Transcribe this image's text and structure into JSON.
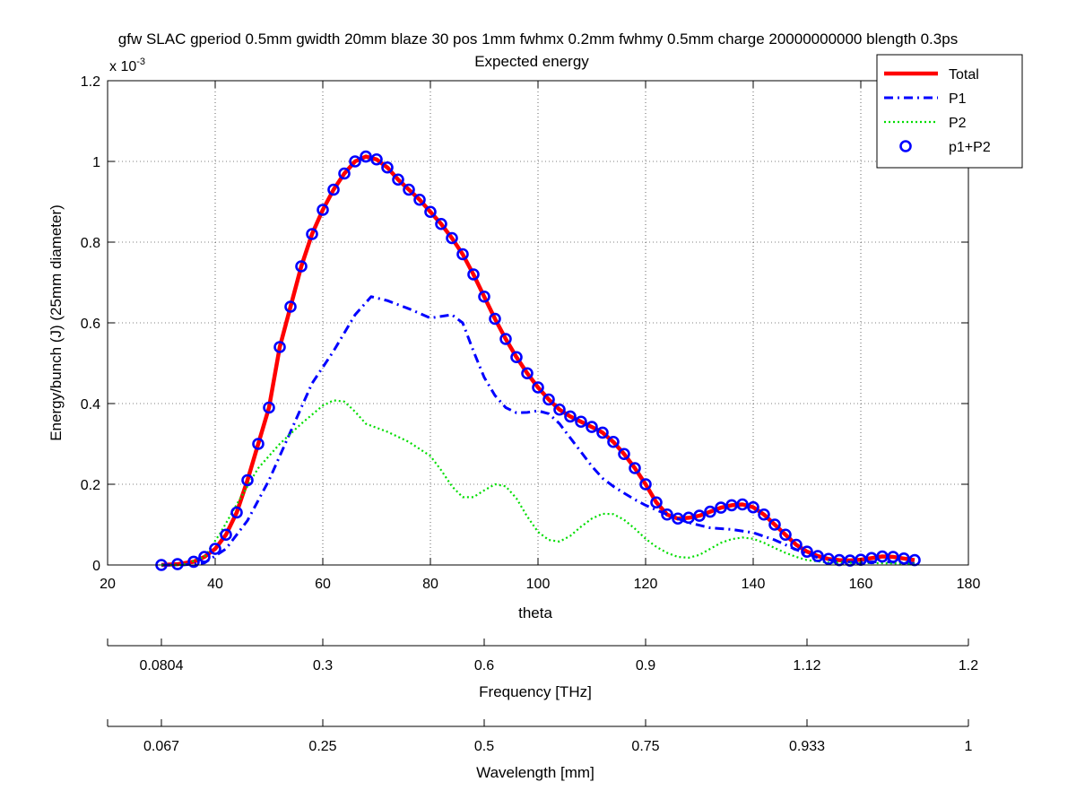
{
  "chart_data": {
    "type": "line",
    "title": "gfw SLAC gperiod 0.5mm gwidth 20mm blaze 30 pos 1mm fwhmx 0.2mm fwhmy 0.5mm charge 20000000000 blength 0.3ps",
    "subtitle": "Expected energy",
    "xlabel": "theta",
    "ylabel": "Energy/bunch (J) (25mm diameter)",
    "y_exponent_label": "x 10",
    "y_exponent_power": "-3",
    "xlim": [
      20,
      180
    ],
    "ylim": [
      0,
      1.2
    ],
    "x_ticks": [
      "20",
      "40",
      "60",
      "80",
      "100",
      "120",
      "140",
      "160",
      "180"
    ],
    "y_ticks": [
      "0",
      "0.2",
      "0.4",
      "0.6",
      "0.8",
      "1",
      "1.2"
    ],
    "grid": true,
    "legend_position": "top-right",
    "secondary_axes": [
      {
        "label": "Frequency [THz]",
        "ticks": [
          {
            "theta": 30,
            "label": "0.0804"
          },
          {
            "theta": 60,
            "label": "0.3"
          },
          {
            "theta": 90,
            "label": "0.6"
          },
          {
            "theta": 120,
            "label": "0.9"
          },
          {
            "theta": 150,
            "label": "1.12"
          },
          {
            "theta": 180,
            "label": "1.2"
          }
        ]
      },
      {
        "label": "Wavelength [mm]",
        "ticks": [
          {
            "theta": 30,
            "label": "0.067"
          },
          {
            "theta": 60,
            "label": "0.25"
          },
          {
            "theta": 90,
            "label": "0.5"
          },
          {
            "theta": 120,
            "label": "0.75"
          },
          {
            "theta": 150,
            "label": "0.933"
          },
          {
            "theta": 180,
            "label": "1"
          }
        ]
      }
    ],
    "series": [
      {
        "name": "Total",
        "color": "#ff0000",
        "style": "solid",
        "points": [
          [
            30,
            0.0
          ],
          [
            33,
            0.002
          ],
          [
            36,
            0.008
          ],
          [
            38,
            0.02
          ],
          [
            40,
            0.04
          ],
          [
            42,
            0.075
          ],
          [
            44,
            0.13
          ],
          [
            46,
            0.21
          ],
          [
            48,
            0.3
          ],
          [
            50,
            0.39
          ],
          [
            52,
            0.54
          ],
          [
            54,
            0.64
          ],
          [
            56,
            0.74
          ],
          [
            58,
            0.82
          ],
          [
            60,
            0.88
          ],
          [
            62,
            0.93
          ],
          [
            64,
            0.97
          ],
          [
            66,
            1.0
          ],
          [
            68,
            1.012
          ],
          [
            70,
            1.005
          ],
          [
            72,
            0.985
          ],
          [
            74,
            0.955
          ],
          [
            76,
            0.93
          ],
          [
            78,
            0.905
          ],
          [
            80,
            0.875
          ],
          [
            82,
            0.845
          ],
          [
            84,
            0.81
          ],
          [
            86,
            0.77
          ],
          [
            88,
            0.72
          ],
          [
            90,
            0.665
          ],
          [
            92,
            0.61
          ],
          [
            94,
            0.56
          ],
          [
            96,
            0.515
          ],
          [
            98,
            0.475
          ],
          [
            100,
            0.44
          ],
          [
            102,
            0.41
          ],
          [
            104,
            0.385
          ],
          [
            106,
            0.368
          ],
          [
            108,
            0.355
          ],
          [
            110,
            0.342
          ],
          [
            112,
            0.328
          ],
          [
            114,
            0.305
          ],
          [
            116,
            0.275
          ],
          [
            118,
            0.24
          ],
          [
            120,
            0.2
          ],
          [
            122,
            0.155
          ],
          [
            124,
            0.125
          ],
          [
            126,
            0.115
          ],
          [
            128,
            0.117
          ],
          [
            130,
            0.122
          ],
          [
            132,
            0.132
          ],
          [
            134,
            0.142
          ],
          [
            136,
            0.148
          ],
          [
            138,
            0.15
          ],
          [
            140,
            0.143
          ],
          [
            142,
            0.125
          ],
          [
            144,
            0.1
          ],
          [
            146,
            0.075
          ],
          [
            148,
            0.05
          ],
          [
            150,
            0.033
          ],
          [
            152,
            0.022
          ],
          [
            154,
            0.015
          ],
          [
            156,
            0.012
          ],
          [
            158,
            0.011
          ],
          [
            160,
            0.013
          ],
          [
            162,
            0.017
          ],
          [
            164,
            0.021
          ],
          [
            166,
            0.02
          ],
          [
            168,
            0.016
          ],
          [
            170,
            0.012
          ]
        ]
      },
      {
        "name": "P1",
        "color": "#0000ff",
        "style": "dashdot",
        "points": [
          [
            30,
            0.0
          ],
          [
            34,
            0.0
          ],
          [
            38,
            0.005
          ],
          [
            42,
            0.04
          ],
          [
            46,
            0.11
          ],
          [
            50,
            0.21
          ],
          [
            54,
            0.33
          ],
          [
            58,
            0.45
          ],
          [
            62,
            0.53
          ],
          [
            66,
            0.62
          ],
          [
            69,
            0.665
          ],
          [
            72,
            0.655
          ],
          [
            76,
            0.635
          ],
          [
            80,
            0.612
          ],
          [
            84,
            0.62
          ],
          [
            86,
            0.6
          ],
          [
            88,
            0.53
          ],
          [
            90,
            0.465
          ],
          [
            92,
            0.42
          ],
          [
            94,
            0.39
          ],
          [
            96,
            0.377
          ],
          [
            98,
            0.378
          ],
          [
            100,
            0.382
          ],
          [
            102,
            0.375
          ],
          [
            104,
            0.35
          ],
          [
            106,
            0.315
          ],
          [
            108,
            0.28
          ],
          [
            110,
            0.245
          ],
          [
            112,
            0.215
          ],
          [
            114,
            0.195
          ],
          [
            116,
            0.178
          ],
          [
            118,
            0.162
          ],
          [
            120,
            0.148
          ],
          [
            124,
            0.125
          ],
          [
            128,
            0.105
          ],
          [
            132,
            0.092
          ],
          [
            136,
            0.088
          ],
          [
            140,
            0.08
          ],
          [
            144,
            0.062
          ],
          [
            148,
            0.038
          ],
          [
            152,
            0.018
          ],
          [
            156,
            0.008
          ],
          [
            160,
            0.007
          ],
          [
            164,
            0.008
          ],
          [
            167,
            0.006
          ],
          [
            170,
            0.004
          ]
        ]
      },
      {
        "name": "P2",
        "color": "#00dd00",
        "style": "dotted",
        "points": [
          [
            30,
            0.0
          ],
          [
            34,
            0.0
          ],
          [
            38,
            0.02
          ],
          [
            41,
            0.08
          ],
          [
            44,
            0.15
          ],
          [
            48,
            0.24
          ],
          [
            52,
            0.3
          ],
          [
            56,
            0.35
          ],
          [
            60,
            0.395
          ],
          [
            62,
            0.408
          ],
          [
            64,
            0.405
          ],
          [
            66,
            0.38
          ],
          [
            68,
            0.35
          ],
          [
            72,
            0.33
          ],
          [
            76,
            0.305
          ],
          [
            80,
            0.27
          ],
          [
            82,
            0.235
          ],
          [
            84,
            0.195
          ],
          [
            86,
            0.168
          ],
          [
            88,
            0.168
          ],
          [
            90,
            0.185
          ],
          [
            92,
            0.2
          ],
          [
            94,
            0.195
          ],
          [
            96,
            0.165
          ],
          [
            98,
            0.12
          ],
          [
            100,
            0.082
          ],
          [
            102,
            0.062
          ],
          [
            104,
            0.058
          ],
          [
            106,
            0.072
          ],
          [
            108,
            0.095
          ],
          [
            110,
            0.115
          ],
          [
            112,
            0.127
          ],
          [
            114,
            0.126
          ],
          [
            116,
            0.112
          ],
          [
            118,
            0.09
          ],
          [
            120,
            0.065
          ],
          [
            122,
            0.045
          ],
          [
            124,
            0.03
          ],
          [
            126,
            0.02
          ],
          [
            128,
            0.018
          ],
          [
            130,
            0.025
          ],
          [
            132,
            0.04
          ],
          [
            134,
            0.055
          ],
          [
            136,
            0.064
          ],
          [
            138,
            0.068
          ],
          [
            140,
            0.065
          ],
          [
            142,
            0.055
          ],
          [
            144,
            0.042
          ],
          [
            146,
            0.03
          ],
          [
            148,
            0.02
          ],
          [
            150,
            0.012
          ],
          [
            154,
            0.006
          ],
          [
            160,
            0.005
          ],
          [
            166,
            0.004
          ],
          [
            170,
            0.003
          ]
        ]
      },
      {
        "name": "p1+P2",
        "color": "#0000ff",
        "style": "circles",
        "points": [
          [
            30,
            0.0
          ],
          [
            33,
            0.002
          ],
          [
            36,
            0.008
          ],
          [
            38,
            0.02
          ],
          [
            40,
            0.04
          ],
          [
            42,
            0.075
          ],
          [
            44,
            0.13
          ],
          [
            46,
            0.21
          ],
          [
            48,
            0.3
          ],
          [
            50,
            0.39
          ],
          [
            52,
            0.54
          ],
          [
            54,
            0.64
          ],
          [
            56,
            0.74
          ],
          [
            58,
            0.82
          ],
          [
            60,
            0.88
          ],
          [
            62,
            0.93
          ],
          [
            64,
            0.97
          ],
          [
            66,
            1.0
          ],
          [
            68,
            1.012
          ],
          [
            70,
            1.005
          ],
          [
            72,
            0.985
          ],
          [
            74,
            0.955
          ],
          [
            76,
            0.93
          ],
          [
            78,
            0.905
          ],
          [
            80,
            0.875
          ],
          [
            82,
            0.845
          ],
          [
            84,
            0.81
          ],
          [
            86,
            0.77
          ],
          [
            88,
            0.72
          ],
          [
            90,
            0.665
          ],
          [
            92,
            0.61
          ],
          [
            94,
            0.56
          ],
          [
            96,
            0.515
          ],
          [
            98,
            0.475
          ],
          [
            100,
            0.44
          ],
          [
            102,
            0.41
          ],
          [
            104,
            0.385
          ],
          [
            106,
            0.368
          ],
          [
            108,
            0.355
          ],
          [
            110,
            0.342
          ],
          [
            112,
            0.328
          ],
          [
            114,
            0.305
          ],
          [
            116,
            0.275
          ],
          [
            118,
            0.24
          ],
          [
            120,
            0.2
          ],
          [
            122,
            0.155
          ],
          [
            124,
            0.125
          ],
          [
            126,
            0.115
          ],
          [
            128,
            0.117
          ],
          [
            130,
            0.122
          ],
          [
            132,
            0.132
          ],
          [
            134,
            0.142
          ],
          [
            136,
            0.148
          ],
          [
            138,
            0.15
          ],
          [
            140,
            0.143
          ],
          [
            142,
            0.125
          ],
          [
            144,
            0.1
          ],
          [
            146,
            0.075
          ],
          [
            148,
            0.05
          ],
          [
            150,
            0.033
          ],
          [
            152,
            0.022
          ],
          [
            154,
            0.015
          ],
          [
            156,
            0.012
          ],
          [
            158,
            0.011
          ],
          [
            160,
            0.013
          ],
          [
            162,
            0.017
          ],
          [
            164,
            0.021
          ],
          [
            166,
            0.02
          ],
          [
            168,
            0.016
          ],
          [
            170,
            0.012
          ]
        ]
      }
    ]
  }
}
